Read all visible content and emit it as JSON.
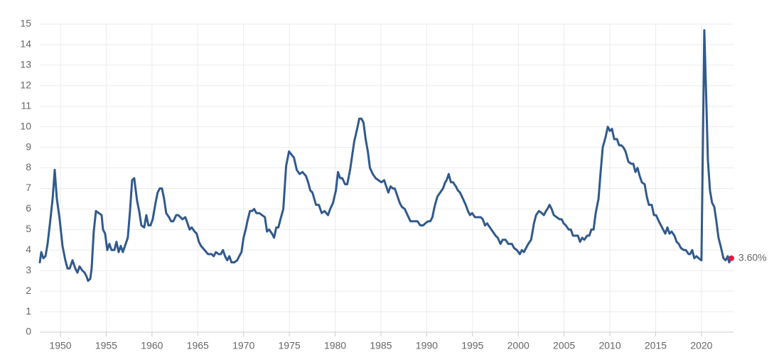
{
  "chart_data": {
    "type": "line",
    "color": "#315a8c",
    "grid": true,
    "xlim": [
      1947.75,
      2023.5
    ],
    "xticks": [
      1950,
      1955,
      1960,
      1965,
      1970,
      1975,
      1980,
      1985,
      1990,
      1995,
      2000,
      2005,
      2010,
      2015,
      2020
    ],
    "ylim": [
      0,
      15
    ],
    "yticks": [
      0,
      1,
      2,
      3,
      4,
      5,
      6,
      7,
      8,
      9,
      10,
      11,
      12,
      13,
      14,
      15
    ],
    "annotation": {
      "x": 2023.26,
      "value": 3.6,
      "label": "3.60%",
      "color": "#e3173e"
    },
    "x": [
      1947.75,
      1947.91,
      1948.14,
      1948.37,
      1948.6,
      1948.91,
      1949.15,
      1949.38,
      1949.61,
      1949.92,
      1950.23,
      1950.54,
      1950.78,
      1951.01,
      1951.32,
      1951.63,
      1951.86,
      1952.09,
      1952.4,
      1952.64,
      1952.87,
      1953.02,
      1953.26,
      1953.41,
      1953.64,
      1953.88,
      1954.19,
      1954.5,
      1954.65,
      1954.88,
      1955.12,
      1955.35,
      1955.58,
      1955.89,
      1956.12,
      1956.36,
      1956.59,
      1956.82,
      1957.05,
      1957.36,
      1957.6,
      1957.83,
      1958.06,
      1958.37,
      1958.6,
      1958.84,
      1959.15,
      1959.38,
      1959.61,
      1959.84,
      1960.08,
      1960.39,
      1960.62,
      1960.85,
      1961.09,
      1961.32,
      1961.55,
      1961.86,
      1962.09,
      1962.33,
      1962.64,
      1962.87,
      1963.1,
      1963.33,
      1963.64,
      1963.88,
      1964.11,
      1964.34,
      1964.65,
      1964.88,
      1965.12,
      1965.35,
      1965.74,
      1966.12,
      1966.51,
      1966.74,
      1966.98,
      1967.29,
      1967.52,
      1967.75,
      1967.98,
      1968.22,
      1968.45,
      1968.68,
      1968.99,
      1969.3,
      1969.53,
      1969.77,
      1970.0,
      1970.23,
      1970.47,
      1970.7,
      1970.93,
      1971.16,
      1971.4,
      1971.71,
      1972.02,
      1972.33,
      1972.56,
      1972.79,
      1973.1,
      1973.33,
      1973.57,
      1973.8,
      1974.03,
      1974.34,
      1974.65,
      1974.96,
      1975.5,
      1975.81,
      1976.12,
      1976.43,
      1976.82,
      1977.05,
      1977.29,
      1977.52,
      1977.91,
      1978.22,
      1978.53,
      1978.84,
      1979.22,
      1979.46,
      1979.77,
      1980.08,
      1980.31,
      1980.54,
      1980.78,
      1981.09,
      1981.32,
      1981.63,
      1981.86,
      1982.09,
      1982.4,
      1982.64,
      1982.87,
      1983.1,
      1983.33,
      1983.57,
      1983.8,
      1984.11,
      1984.42,
      1984.73,
      1985.04,
      1985.35,
      1985.58,
      1985.81,
      1986.05,
      1986.28,
      1986.51,
      1986.82,
      1987.05,
      1987.29,
      1987.6,
      1987.91,
      1988.22,
      1988.68,
      1988.99,
      1989.3,
      1989.61,
      1989.84,
      1990.16,
      1990.39,
      1990.62,
      1990.85,
      1991.16,
      1991.47,
      1991.78,
      1992.02,
      1992.17,
      1992.4,
      1992.64,
      1992.87,
      1993.18,
      1993.41,
      1993.64,
      1993.95,
      1994.26,
      1994.5,
      1994.73,
      1994.96,
      1995.27,
      1995.58,
      1995.89,
      1996.12,
      1996.36,
      1996.59,
      1996.9,
      1997.21,
      1997.52,
      1997.75,
      1998.06,
      1998.29,
      1998.6,
      1998.91,
      1999.3,
      1999.53,
      1999.84,
      2000.16,
      2000.39,
      2000.62,
      2000.85,
      2001.09,
      2001.4,
      2001.71,
      2001.94,
      2002.25,
      2002.56,
      2002.79,
      2003.02,
      2003.18,
      2003.41,
      2003.64,
      2003.88,
      2004.19,
      2004.5,
      2004.73,
      2004.96,
      2005.19,
      2005.5,
      2005.74,
      2005.97,
      2006.2,
      2006.51,
      2006.74,
      2006.98,
      2007.21,
      2007.52,
      2007.75,
      2007.98,
      2008.22,
      2008.45,
      2008.76,
      2008.99,
      2009.22,
      2009.53,
      2009.77,
      2010.0,
      2010.23,
      2010.47,
      2010.78,
      2011.01,
      2011.24,
      2011.47,
      2011.71,
      2012.02,
      2012.33,
      2012.56,
      2012.79,
      2013.02,
      2013.26,
      2013.49,
      2013.8,
      2014.03,
      2014.26,
      2014.57,
      2014.81,
      2015.04,
      2015.35,
      2015.58,
      2015.81,
      2016.05,
      2016.28,
      2016.51,
      2016.74,
      2017.05,
      2017.29,
      2017.52,
      2017.75,
      2018.06,
      2018.29,
      2018.6,
      2018.76,
      2018.99,
      2019.22,
      2019.46,
      2019.69,
      2020.0,
      2020.31,
      2020.54,
      2020.7,
      2020.93,
      2021.16,
      2021.4,
      2021.63,
      2021.86,
      2022.09,
      2022.25,
      2022.4,
      2022.64,
      2022.87,
      2023.02,
      2023.26
    ],
    "values": [
      3.4,
      3.9,
      3.6,
      3.7,
      4.3,
      5.5,
      6.5,
      7.9,
      6.5,
      5.5,
      4.2,
      3.5,
      3.1,
      3.1,
      3.5,
      3.1,
      2.9,
      3.2,
      3.0,
      2.9,
      2.7,
      2.5,
      2.6,
      3.1,
      4.9,
      5.9,
      5.8,
      5.7,
      5.0,
      4.8,
      4.0,
      4.3,
      4.0,
      4.0,
      4.4,
      3.9,
      4.2,
      3.9,
      4.2,
      4.6,
      5.9,
      7.4,
      7.5,
      6.4,
      5.9,
      5.2,
      5.1,
      5.7,
      5.2,
      5.2,
      5.5,
      6.3,
      6.8,
      7.0,
      7.0,
      6.5,
      5.8,
      5.6,
      5.4,
      5.4,
      5.7,
      5.7,
      5.6,
      5.5,
      5.6,
      5.3,
      5.0,
      5.1,
      4.9,
      4.8,
      4.4,
      4.2,
      4.0,
      3.8,
      3.8,
      3.7,
      3.9,
      3.8,
      3.8,
      4.0,
      3.7,
      3.5,
      3.7,
      3.4,
      3.4,
      3.5,
      3.7,
      3.9,
      4.6,
      5.0,
      5.5,
      5.9,
      5.9,
      6.0,
      5.8,
      5.8,
      5.7,
      5.6,
      4.9,
      5.0,
      4.8,
      4.6,
      5.1,
      5.1,
      5.5,
      6.0,
      8.1,
      8.8,
      8.5,
      7.9,
      7.7,
      7.8,
      7.6,
      7.3,
      6.9,
      6.8,
      6.2,
      6.2,
      5.8,
      5.9,
      5.7,
      6.0,
      6.3,
      6.9,
      7.8,
      7.5,
      7.5,
      7.2,
      7.2,
      7.9,
      8.6,
      9.3,
      9.9,
      10.4,
      10.4,
      10.2,
      9.4,
      8.8,
      8.0,
      7.7,
      7.5,
      7.4,
      7.3,
      7.4,
      7.1,
      6.8,
      7.1,
      7.0,
      7.0,
      6.6,
      6.3,
      6.1,
      6.0,
      5.7,
      5.4,
      5.4,
      5.4,
      5.2,
      5.2,
      5.3,
      5.4,
      5.4,
      5.6,
      6.1,
      6.6,
      6.8,
      7.0,
      7.3,
      7.4,
      7.7,
      7.3,
      7.3,
      7.1,
      6.9,
      6.8,
      6.5,
      6.2,
      5.9,
      5.7,
      5.8,
      5.6,
      5.6,
      5.6,
      5.5,
      5.2,
      5.3,
      5.1,
      4.9,
      4.7,
      4.6,
      4.3,
      4.5,
      4.5,
      4.3,
      4.3,
      4.1,
      4.0,
      3.8,
      4.0,
      3.9,
      4.1,
      4.3,
      4.5,
      5.3,
      5.7,
      5.9,
      5.8,
      5.7,
      5.9,
      6.0,
      6.2,
      6.0,
      5.7,
      5.6,
      5.5,
      5.5,
      5.3,
      5.2,
      5.0,
      5.0,
      4.7,
      4.7,
      4.7,
      4.4,
      4.6,
      4.5,
      4.7,
      4.7,
      5.0,
      5.0,
      5.8,
      6.5,
      7.8,
      9.0,
      9.5,
      10.0,
      9.8,
      9.9,
      9.4,
      9.4,
      9.1,
      9.1,
      9.0,
      8.8,
      8.3,
      8.2,
      8.2,
      7.8,
      8.0,
      7.6,
      7.3,
      7.2,
      6.6,
      6.2,
      6.2,
      5.7,
      5.7,
      5.4,
      5.2,
      5.0,
      4.8,
      5.1,
      4.8,
      4.9,
      4.7,
      4.4,
      4.3,
      4.1,
      4.0,
      4.0,
      3.8,
      3.8,
      4.0,
      3.6,
      3.7,
      3.6,
      3.5,
      14.7,
      11.1,
      8.4,
      6.9,
      6.3,
      6.1,
      5.4,
      4.6,
      4.2,
      3.9,
      3.6,
      3.5,
      3.7,
      3.4,
      3.6
    ]
  }
}
